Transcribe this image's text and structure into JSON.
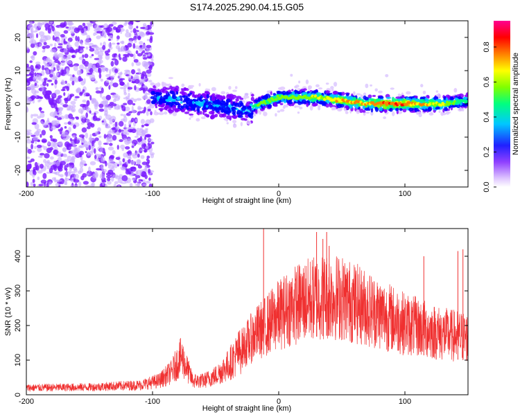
{
  "title": "S174.2025.290.04.15.G05",
  "colors": {
    "snr_line": "#f03030",
    "spectrogram_dot": "#7a1aff",
    "spectrogram_light": "#c8aaff"
  },
  "chart_data": [
    {
      "type": "heatmap",
      "title": "S174.2025.290.04.15.G05",
      "xlabel": "Height of straight line (km)",
      "ylabel": "Frequency (Hz)",
      "xlim": [
        -200,
        150
      ],
      "ylim": [
        -25,
        25
      ],
      "xticks": [
        -200,
        -100,
        0,
        100
      ],
      "xtick_labels": [
        "-200",
        "-100",
        "0",
        "100"
      ],
      "yticks": [
        -20,
        -10,
        0,
        10,
        20
      ],
      "ytick_labels": [
        "-20",
        "-10",
        "0",
        "10",
        "20"
      ],
      "colorbar": {
        "label": "Normalized spectral amplitude",
        "range": [
          0.0,
          0.95
        ],
        "ticks": [
          0.0,
          0.2,
          0.4,
          0.6,
          0.8
        ],
        "tick_labels": [
          "0.0",
          "0.2",
          "0.4",
          "0.6",
          "0.8"
        ],
        "colormap": [
          "#e0c8ff",
          "#8000ff",
          "#0000ff",
          "#00c8ff",
          "#00ff80",
          "#80ff00",
          "#ffff00",
          "#ff8000",
          "#ff0000",
          "#ff00a0"
        ]
      },
      "ridge": {
        "x": [
          -100,
          -80,
          -60,
          -40,
          -25,
          -15,
          0,
          15,
          30,
          50,
          70,
          90,
          110,
          130,
          150
        ],
        "frequency": [
          2,
          1,
          0,
          -1,
          -2,
          0,
          2,
          2,
          2,
          1,
          0,
          0,
          0,
          0,
          1
        ],
        "amplitude": [
          0.3,
          0.35,
          0.35,
          0.35,
          0.35,
          0.5,
          0.55,
          0.55,
          0.6,
          0.7,
          0.75,
          0.85,
          0.75,
          0.6,
          0.4
        ]
      }
    },
    {
      "type": "line",
      "xlabel": "Height of straight line (km)",
      "ylabel": "SNR (10 * v/v)",
      "xlim": [
        -200,
        150
      ],
      "ylim": [
        0,
        480
      ],
      "xticks": [
        -200,
        -100,
        0,
        100
      ],
      "xtick_labels": [
        "-200",
        "-100",
        "0",
        "100"
      ],
      "yticks": [
        0,
        100,
        200,
        300,
        400
      ],
      "ytick_labels": [
        "0",
        "100",
        "200",
        "300",
        "400"
      ],
      "envelope": {
        "x": [
          -200,
          -150,
          -110,
          -95,
          -85,
          -80,
          -77,
          -72,
          -68,
          -60,
          -50,
          -40,
          -30,
          -20,
          -10,
          0,
          10,
          20,
          30,
          40,
          50,
          60,
          70,
          80,
          90,
          100,
          110,
          120,
          130,
          140,
          150
        ],
        "snr": [
          20,
          22,
          28,
          40,
          65,
          95,
          110,
          70,
          40,
          40,
          55,
          85,
          130,
          170,
          200,
          230,
          255,
          270,
          280,
          285,
          280,
          265,
          250,
          235,
          220,
          205,
          195,
          185,
          175,
          170,
          165
        ]
      },
      "spikes": {
        "x": [
          -12,
          30,
          35,
          38,
          40,
          115,
          142,
          146
        ],
        "snr": [
          480,
          470,
          450,
          470,
          430,
          400,
          415,
          420
        ]
      }
    }
  ]
}
